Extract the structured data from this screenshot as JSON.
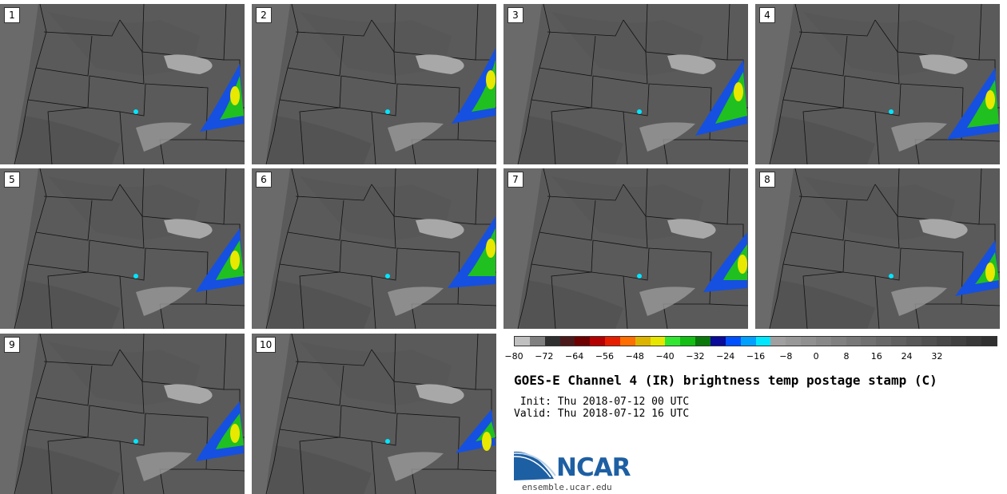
{
  "panels": [
    {
      "label": "1"
    },
    {
      "label": "2"
    },
    {
      "label": "3"
    },
    {
      "label": "4"
    },
    {
      "label": "5"
    },
    {
      "label": "6"
    },
    {
      "label": "7"
    },
    {
      "label": "8"
    },
    {
      "label": "9"
    },
    {
      "label": "10"
    }
  ],
  "colorbar": {
    "colors": [
      "#c0c0c0",
      "#808080",
      "#303030",
      "#4a1a1a",
      "#6e0000",
      "#b40000",
      "#e61e00",
      "#ff6e00",
      "#dcb400",
      "#e6e600",
      "#32e632",
      "#14be14",
      "#0a780a",
      "#0a0a9b",
      "#0050ff",
      "#00a0ff",
      "#00e6ff",
      "#a0a0a0",
      "#989898",
      "#909090",
      "#888888",
      "#808080",
      "#787878",
      "#707070",
      "#686868",
      "#606060",
      "#585858",
      "#505050",
      "#484848",
      "#404040",
      "#383838",
      "#303030"
    ],
    "ticks": [
      "−80",
      "−72",
      "−64",
      "−56",
      "−48",
      "−40",
      "−32",
      "−24",
      "−16",
      "−8",
      "0",
      "8",
      "16",
      "24",
      "32"
    ]
  },
  "title": "GOES-E Channel 4 (IR) brightness temp postage stamp (C)",
  "init": " Init: Thu 2018-07-12 00 UTC",
  "valid": "Valid: Thu 2018-07-12 16 UTC",
  "logo": {
    "text": "NCAR",
    "url": "ensemble.ucar.edu",
    "color": "#1d5fa3"
  }
}
